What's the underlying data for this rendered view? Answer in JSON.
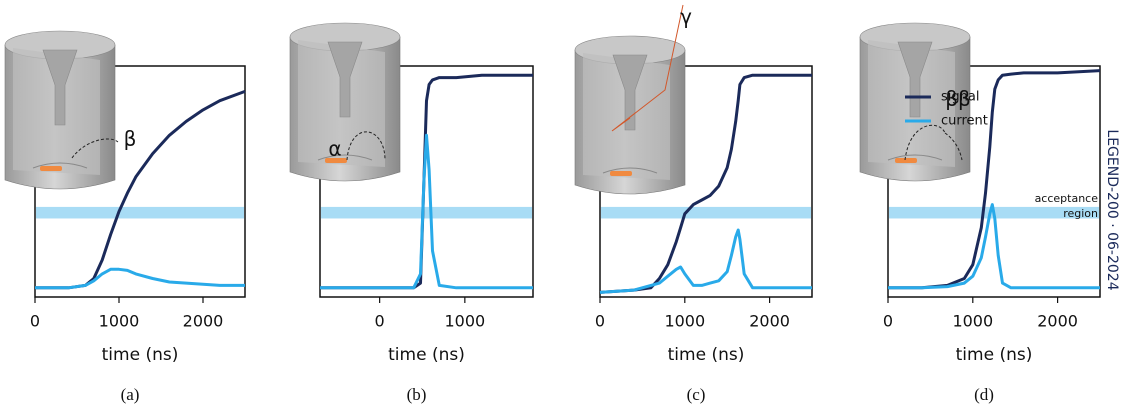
{
  "chart_data": [
    {
      "type": "line",
      "caption": "(a)",
      "xlabel": "time (ns)",
      "annotation": "β",
      "x": [
        0,
        200,
        400,
        600,
        700,
        800,
        900,
        1000,
        1100,
        1200,
        1400,
        1600,
        1800,
        2000,
        2200,
        2500
      ],
      "series": [
        {
          "name": "signal",
          "color": "#1b2a5a",
          "values": [
            0.04,
            0.04,
            0.04,
            0.05,
            0.08,
            0.16,
            0.27,
            0.37,
            0.45,
            0.52,
            0.62,
            0.7,
            0.76,
            0.81,
            0.85,
            0.89
          ]
        },
        {
          "name": "current",
          "color": "#29aae9",
          "values": [
            0.04,
            0.04,
            0.04,
            0.05,
            0.07,
            0.1,
            0.12,
            0.12,
            0.115,
            0.1,
            0.08,
            0.065,
            0.06,
            0.055,
            0.05,
            0.05
          ]
        }
      ],
      "xlim": [
        0,
        2500
      ],
      "xticks": [
        0,
        1000,
        2000
      ],
      "ylim": [
        0,
        1
      ],
      "band": [
        0.34,
        0.39
      ],
      "band_color": "#a8dcf5"
    },
    {
      "type": "line",
      "caption": "(b)",
      "xlabel": "time (ns)",
      "annotation": "α",
      "x": [
        -700,
        -400,
        0,
        400,
        480,
        520,
        550,
        580,
        620,
        700,
        900,
        1200,
        1500,
        1800
      ],
      "series": [
        {
          "name": "signal",
          "color": "#1b2a5a",
          "values": [
            0.04,
            0.04,
            0.04,
            0.04,
            0.06,
            0.5,
            0.85,
            0.92,
            0.94,
            0.95,
            0.95,
            0.96,
            0.96,
            0.96
          ]
        },
        {
          "name": "current",
          "color": "#29aae9",
          "values": [
            0.04,
            0.04,
            0.04,
            0.04,
            0.1,
            0.5,
            0.7,
            0.55,
            0.2,
            0.05,
            0.04,
            0.04,
            0.04,
            0.04
          ]
        }
      ],
      "xlim": [
        -700,
        1800
      ],
      "xticks": [
        0,
        1000
      ],
      "ylim": [
        0,
        1
      ],
      "band": [
        0.34,
        0.39
      ],
      "band_color": "#a8dcf5"
    },
    {
      "type": "line",
      "caption": "(c)",
      "xlabel": "time (ns)",
      "annotation": "γ",
      "x": [
        0,
        400,
        600,
        700,
        800,
        900,
        950,
        1000,
        1100,
        1200,
        1300,
        1400,
        1500,
        1550,
        1600,
        1630,
        1650,
        1700,
        1800,
        2000,
        2500
      ],
      "series": [
        {
          "name": "signal",
          "color": "#1b2a5a",
          "values": [
            0.02,
            0.03,
            0.04,
            0.08,
            0.14,
            0.24,
            0.3,
            0.36,
            0.4,
            0.42,
            0.44,
            0.48,
            0.56,
            0.64,
            0.76,
            0.85,
            0.92,
            0.95,
            0.96,
            0.96,
            0.96
          ]
        },
        {
          "name": "current",
          "color": "#29aae9",
          "values": [
            0.02,
            0.03,
            0.05,
            0.06,
            0.09,
            0.12,
            0.13,
            0.1,
            0.05,
            0.05,
            0.06,
            0.07,
            0.11,
            0.18,
            0.26,
            0.29,
            0.25,
            0.1,
            0.04,
            0.04,
            0.04
          ]
        }
      ],
      "xlim": [
        0,
        2500
      ],
      "xticks": [
        0,
        1000,
        2000
      ],
      "ylim": [
        0,
        1
      ],
      "band": [
        0.34,
        0.39
      ],
      "band_color": "#a8dcf5"
    },
    {
      "type": "line",
      "caption": "(d)",
      "xlabel": "time (ns)",
      "annotation": "ββ",
      "x": [
        0,
        400,
        700,
        900,
        1000,
        1100,
        1150,
        1200,
        1230,
        1260,
        1300,
        1350,
        1450,
        1600,
        2000,
        2500
      ],
      "series": [
        {
          "name": "signal",
          "color": "#1b2a5a",
          "values": [
            0.04,
            0.04,
            0.05,
            0.08,
            0.14,
            0.3,
            0.45,
            0.65,
            0.8,
            0.9,
            0.94,
            0.96,
            0.965,
            0.97,
            0.97,
            0.98
          ]
        },
        {
          "name": "current",
          "color": "#29aae9",
          "values": [
            0.04,
            0.04,
            0.045,
            0.06,
            0.09,
            0.17,
            0.26,
            0.36,
            0.4,
            0.34,
            0.18,
            0.06,
            0.04,
            0.04,
            0.04,
            0.04
          ]
        }
      ],
      "xlim": [
        0,
        2500
      ],
      "xticks": [
        0,
        1000,
        2000
      ],
      "ylim": [
        0,
        1
      ],
      "band": [
        0.34,
        0.39
      ],
      "band_color": "#a8dcf5",
      "band_label": [
        "acceptance",
        "region"
      ],
      "legend": "upper left",
      "watermark": "LEGEND-200 · 06-2024"
    }
  ]
}
